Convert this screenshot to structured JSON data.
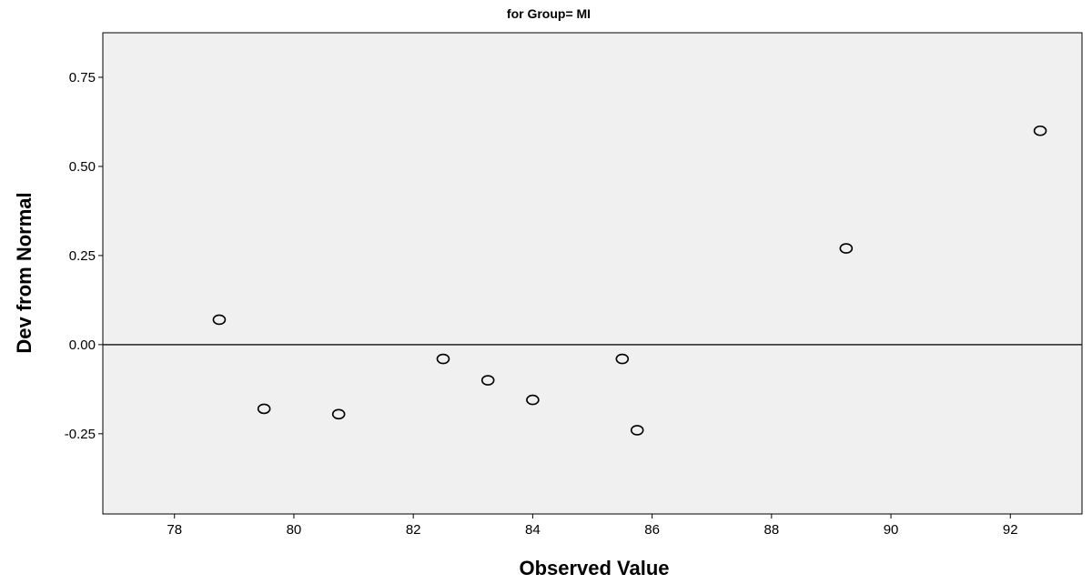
{
  "chart_data": {
    "type": "scatter",
    "title": "for Group= MI",
    "xlabel": "Observed Value",
    "ylabel": "Dev from Normal",
    "xlim": [
      76.8,
      93.2
    ],
    "ylim": [
      -0.475,
      0.875
    ],
    "x_ticks": [
      78,
      80,
      82,
      84,
      86,
      88,
      90,
      92
    ],
    "y_ticks": [
      -0.25,
      0.0,
      0.25,
      0.5,
      0.75
    ],
    "x_tick_labels": [
      "78",
      "80",
      "82",
      "84",
      "86",
      "88",
      "90",
      "92"
    ],
    "y_tick_labels": [
      "-0.25",
      "0.00",
      "0.25",
      "0.50",
      "0.75"
    ],
    "reference_line_y": 0.0,
    "grid": false,
    "legend": "none",
    "marker": "open-circle",
    "background_color": "#f0f0f0",
    "points": [
      {
        "x": 78.75,
        "y": 0.07
      },
      {
        "x": 79.5,
        "y": -0.18
      },
      {
        "x": 80.75,
        "y": -0.195
      },
      {
        "x": 82.5,
        "y": -0.04
      },
      {
        "x": 83.25,
        "y": -0.1
      },
      {
        "x": 84.0,
        "y": -0.155
      },
      {
        "x": 85.5,
        "y": -0.04
      },
      {
        "x": 85.75,
        "y": -0.24
      },
      {
        "x": 89.25,
        "y": 0.27
      },
      {
        "x": 92.5,
        "y": 0.6
      }
    ]
  }
}
